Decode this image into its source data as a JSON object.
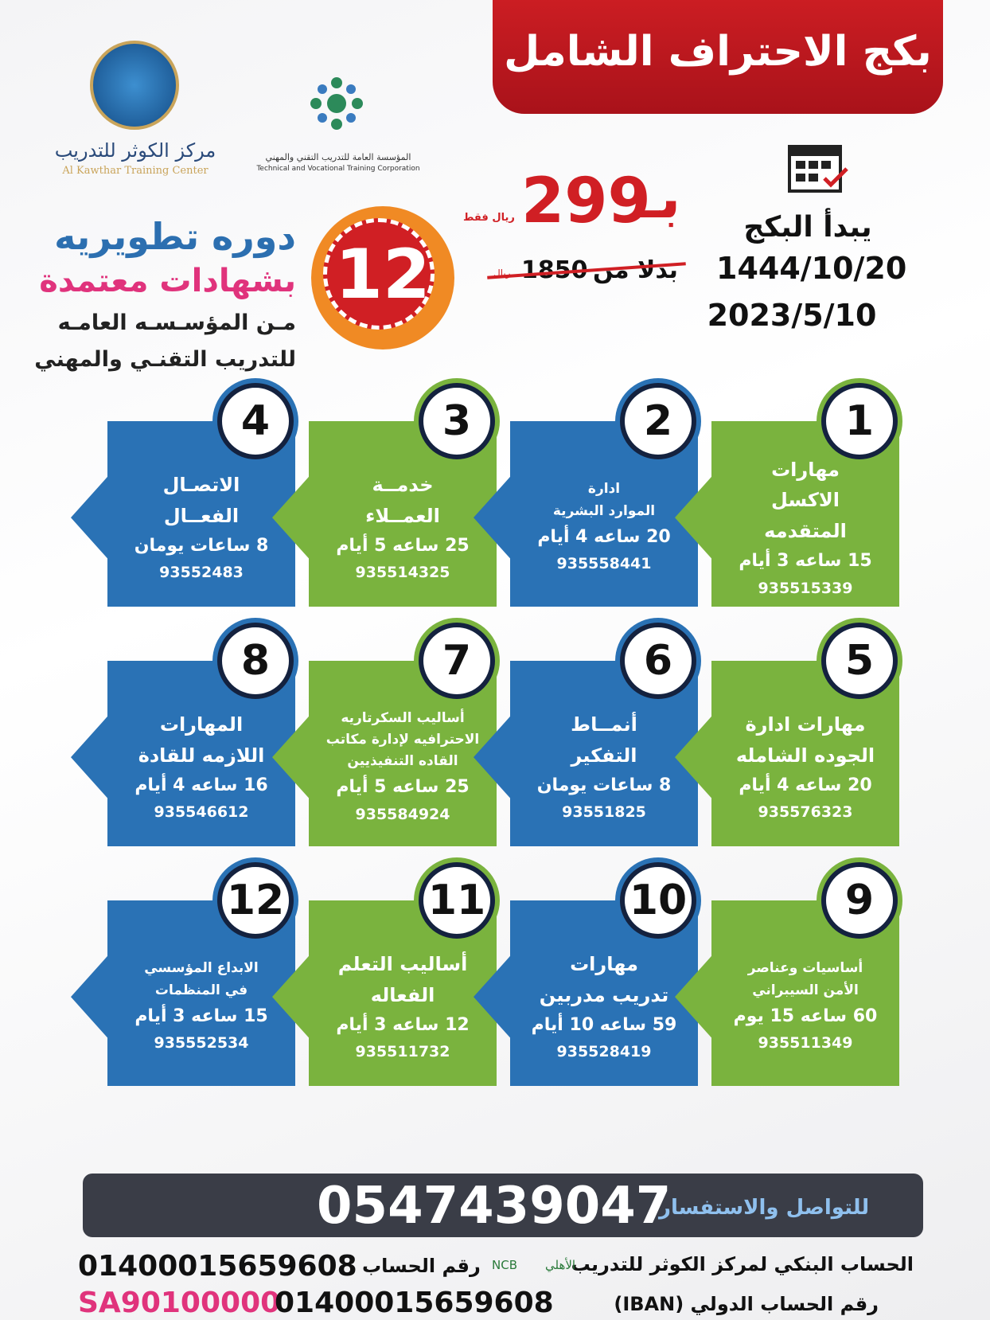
{
  "header": {
    "title": "بكج الاحتراف الشامل",
    "logos": {
      "kawthar_ar": "مركز الكوثر للتدريب",
      "kawthar_en": "Al Kawthar Training Center",
      "tvtc_ar": "المؤسسة العامة للتدريب التقني والمهني",
      "tvtc_en": "Technical and Vocational Training Corporation"
    }
  },
  "promo": {
    "line1": "دوره تطويريه",
    "line2": "بشهادات معتمدة",
    "line3": "مـن المؤسـسـه العامـه",
    "line4": "للتدريب التقنـي والمهني",
    "badge": "12"
  },
  "price": {
    "prefix": "بـ",
    "amount": "299",
    "note": "ريال فقط",
    "was_label": "بدلا من",
    "was_amount": "1850",
    "was_unit": "ريال"
  },
  "start": {
    "label": "يبدأ البكج",
    "hijri": "1444/10/20",
    "gregorian": "2023/5/10"
  },
  "courses": [
    {
      "number": "1",
      "title": [
        "مهارات",
        "الاكسل",
        "المتقدمه"
      ],
      "duration": "15 ساعه 3 أيام",
      "code": "935515339"
    },
    {
      "number": "2",
      "title": [
        "ادارة",
        "الموارد البشرية"
      ],
      "duration": "20 ساعه 4 أيام",
      "code": "935558441"
    },
    {
      "number": "3",
      "title": [
        "خدمــة",
        "العمــلاء"
      ],
      "duration": "25 ساعه 5 أيام",
      "code": "935514325"
    },
    {
      "number": "4",
      "title": [
        "الاتصـال",
        "الفعــال"
      ],
      "duration": "8 ساعات يومان",
      "code": "93552483"
    },
    {
      "number": "5",
      "title": [
        "مهارات ادارة",
        "الجوده الشامله"
      ],
      "duration": "20 ساعه 4 أيام",
      "code": "935576323"
    },
    {
      "number": "6",
      "title": [
        "أنمــاط",
        "التفكير"
      ],
      "duration": "8 ساعات يومان",
      "code": "93551825"
    },
    {
      "number": "7",
      "title": [
        "أساليب السكرتاريه",
        "الاحترافيه لإدارة مكاتب",
        "القاده التنفيذيين"
      ],
      "duration": "25 ساعه 5 أيام",
      "code": "935584924"
    },
    {
      "number": "8",
      "title": [
        "المهارات",
        "اللازمه للقادة"
      ],
      "duration": "16 ساعه 4 أيام",
      "code": "935546612"
    },
    {
      "number": "9",
      "title": [
        "أساسيات وعناصر",
        "الأمن السيبراني"
      ],
      "duration": "60 ساعه 15 يوم",
      "code": "935511349"
    },
    {
      "number": "10",
      "title": [
        "مهارات",
        "تدريب مدربين"
      ],
      "duration": "59 ساعه 10 أيام",
      "code": "935528419"
    },
    {
      "number": "11",
      "title": [
        "أساليب التعلم",
        "الفعاله"
      ],
      "duration": "12 ساعه 3 أيام",
      "code": "935511732"
    },
    {
      "number": "12",
      "title": [
        "الابداع المؤسسي",
        "في المنظمات"
      ],
      "duration": "15 ساعه 3 أيام",
      "code": "935552534"
    }
  ],
  "footer": {
    "contact_label": "للتواصل والاستفسار",
    "phone": "0547439047",
    "bank_label": "الحساب البنكي لمركز الكوثر للتدريب",
    "bank_logo_ar": "الأهلي",
    "bank_logo_en": "NCB",
    "account_label": "رقم الحساب",
    "account": "01400015659608",
    "iban_label": "رقم الحساب الدولي (IBAN)",
    "iban_prefix": "SA90100000",
    "iban_rest": "01400015659608"
  }
}
